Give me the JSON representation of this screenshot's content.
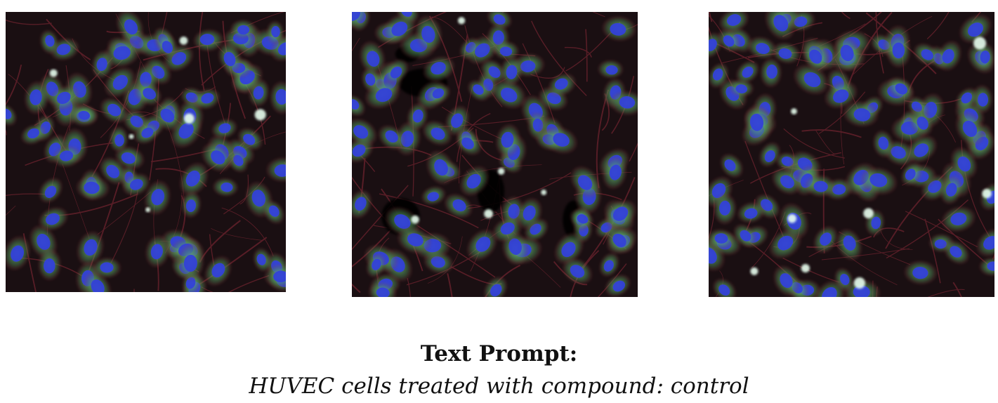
{
  "caption": {
    "heading": "Text Prompt:",
    "prompt": "HUVEC cells treated with compound: control"
  },
  "panels": [
    {
      "name": "microscopy-panel-1",
      "cells": 95,
      "seed": 11,
      "debris": 6
    },
    {
      "name": "microscopy-panel-2",
      "cells": 90,
      "seed": 29,
      "debris": 5,
      "voids": 5
    },
    {
      "name": "microscopy-panel-3",
      "cells": 100,
      "seed": 47,
      "debris": 8
    }
  ],
  "colors": {
    "background": "#1a0f12",
    "actin": "#8a2a38",
    "cytoplasm": "#7fd48a",
    "nucleus": "#3340d8",
    "debris": "#e8fff0"
  }
}
